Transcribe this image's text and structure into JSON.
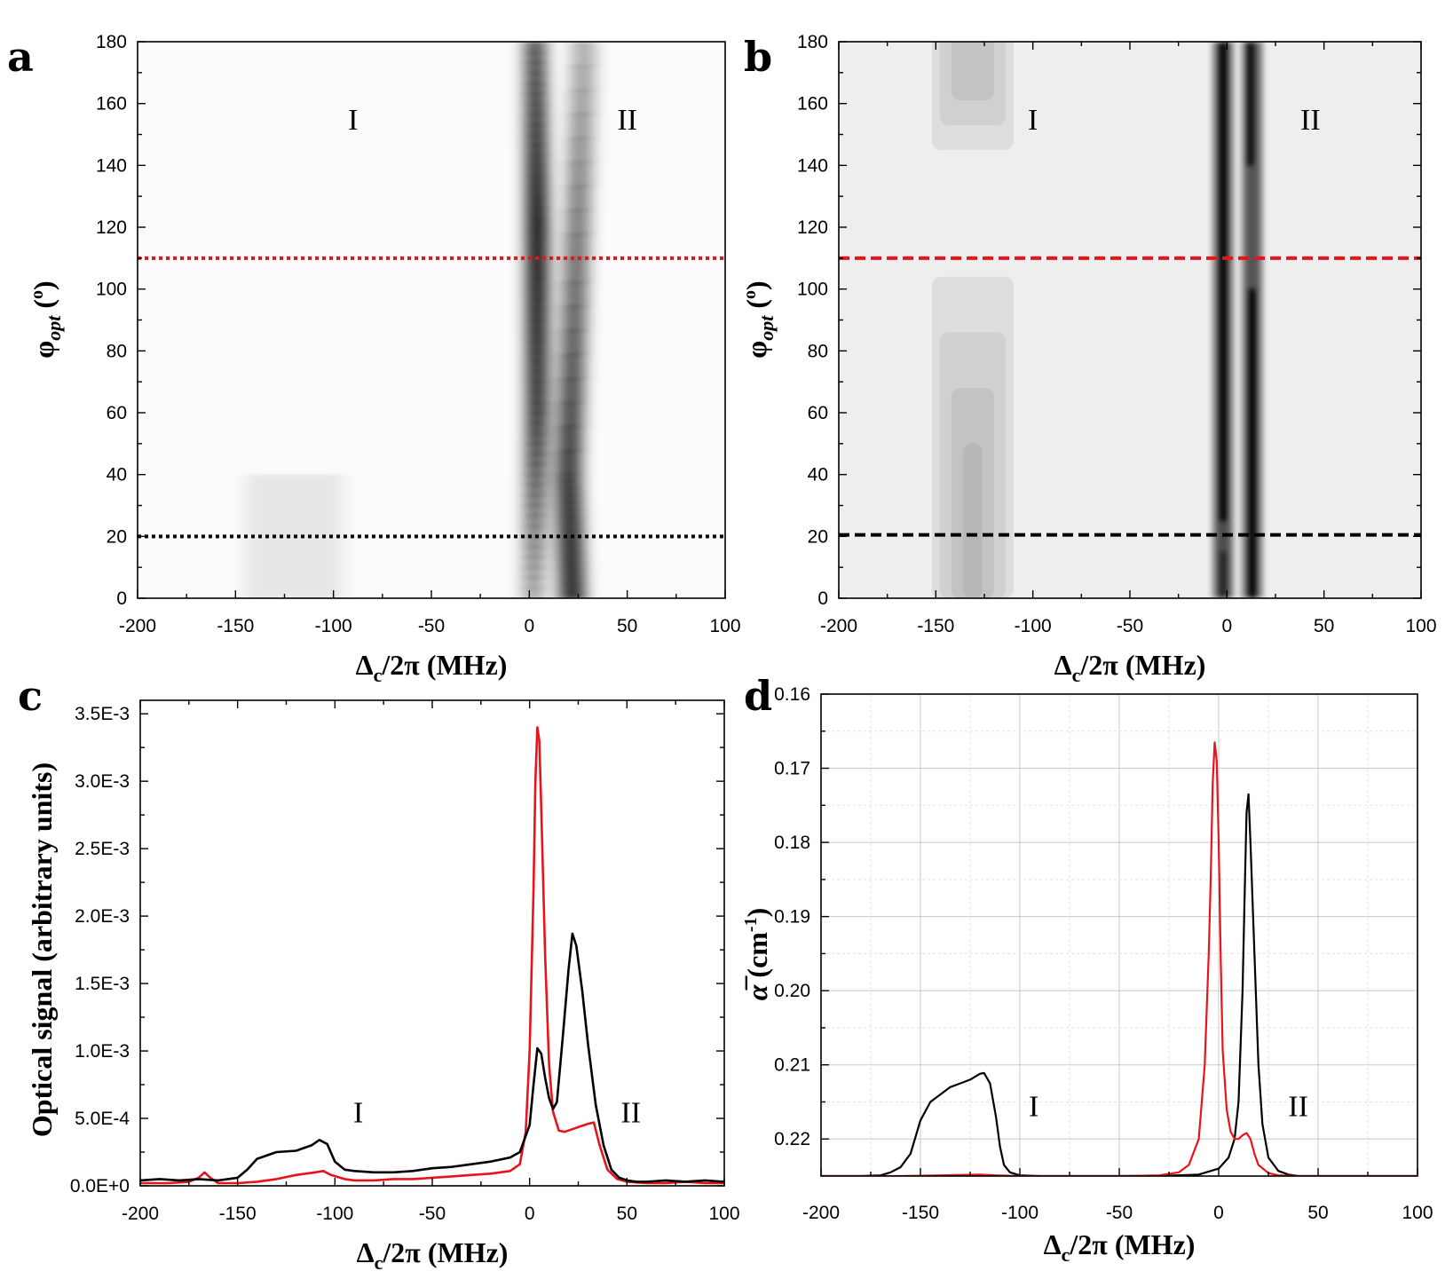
{
  "chart_data": [
    {
      "panel": "a",
      "type": "heatmap",
      "xlabel": "Δc/2π (MHz)",
      "ylabel": "φopt (o)",
      "xlim": [
        -200,
        100
      ],
      "ylim": [
        0,
        180
      ],
      "xticks": [
        -200,
        -150,
        -100,
        -50,
        0,
        50,
        100
      ],
      "yticks": [
        0,
        20,
        40,
        60,
        80,
        100,
        120,
        140,
        160,
        180
      ],
      "region_labels": [
        {
          "text": "I",
          "x": -90,
          "y": 155
        },
        {
          "text": "II",
          "x": 50,
          "y": 155
        }
      ],
      "reference_lines": [
        {
          "y": 110,
          "color": "#e8141b",
          "style": "dotted"
        },
        {
          "y": 20,
          "color": "#000000",
          "style": "dotted"
        }
      ],
      "colormap": "white-to-black (signal strength)",
      "features": [
        {
          "x": [
            2,
            4,
            4,
            3
          ],
          "y": [
            0,
            60,
            120,
            180
          ],
          "weight": [
            0.35,
            0.85,
            1.0,
            0.7
          ],
          "width_mhz": 5
        },
        {
          "x": [
            22,
            20,
            28
          ],
          "y": [
            0,
            40,
            180
          ],
          "weight": [
            0.85,
            0.8,
            0.3
          ],
          "width_mhz": 6
        },
        {
          "x": [
            -130,
            -110
          ],
          "y": [
            0,
            40
          ],
          "weight": [
            0.08,
            0.1
          ],
          "width_mhz": 15
        }
      ]
    },
    {
      "panel": "b",
      "type": "heatmap",
      "xlabel": "Δc/2π (MHz)",
      "ylabel": "φopt (o)",
      "xlim": [
        -200,
        100
      ],
      "ylim": [
        0,
        180
      ],
      "xticks": [
        -200,
        -150,
        -100,
        -50,
        0,
        50,
        100
      ],
      "yticks": [
        0,
        20,
        40,
        60,
        80,
        100,
        120,
        140,
        160,
        180
      ],
      "region_labels": [
        {
          "text": "I",
          "x": -100,
          "y": 155
        },
        {
          "text": "II",
          "x": 43,
          "y": 155
        }
      ],
      "reference_lines": [
        {
          "y": 110,
          "color": "#e8141b",
          "style": "dashed"
        },
        {
          "y": 20.5,
          "color": "#000000",
          "style": "dashed"
        }
      ],
      "colormap": "light-gray-to-black (contour)",
      "background": "#eeeeee",
      "features": [
        {
          "x": -2,
          "y_range": [
            0,
            180
          ],
          "weight": 1.0
        },
        {
          "x": 13,
          "y_range": [
            0,
            180
          ],
          "weight": 0.95
        },
        {
          "x": -128,
          "y_range": [
            0,
            180
          ],
          "weight": 0.25
        }
      ]
    },
    {
      "panel": "c",
      "type": "line",
      "xlabel": "Δc/2π (MHz)",
      "ylabel": "Optical signal (arbitrary units)",
      "xlim": [
        -200,
        100
      ],
      "ylim": [
        0,
        0.0036
      ],
      "xticks": [
        -200,
        -150,
        -100,
        -50,
        0,
        50,
        100
      ],
      "yticks": [
        0,
        0.0005,
        0.001,
        0.0015,
        0.002,
        0.0025,
        0.003,
        0.0035
      ],
      "ytick_labels": [
        "0.0E+0",
        "5.0E-4",
        "1.0E-3",
        "1.5E-3",
        "2.0E-3",
        "2.5E-3",
        "3.0E-3",
        "3.5E-3"
      ],
      "region_labels": [
        {
          "text": "I",
          "x": -88,
          "y": 0.00055
        },
        {
          "text": "II",
          "x": 52,
          "y": 0.00055
        }
      ],
      "series": [
        {
          "color": "#000000",
          "x": [
            -200,
            -190,
            -180,
            -170,
            -160,
            -150,
            -145,
            -140,
            -130,
            -120,
            -112,
            -108,
            -104,
            -100,
            -95,
            -90,
            -80,
            -70,
            -60,
            -50,
            -40,
            -30,
            -20,
            -10,
            -5,
            0,
            2,
            4,
            6,
            8,
            10,
            12,
            14,
            17,
            20,
            22,
            24,
            27,
            30,
            34,
            38,
            42,
            46,
            50,
            55,
            60,
            70,
            80,
            90,
            100
          ],
          "y": [
            4e-05,
            5e-05,
            4e-05,
            5e-05,
            4e-05,
            6e-05,
            0.00012,
            0.0002,
            0.00025,
            0.00026,
            0.0003,
            0.00034,
            0.00031,
            0.00018,
            0.00012,
            0.00011,
            0.0001,
            0.0001,
            0.00011,
            0.00013,
            0.00014,
            0.00016,
            0.00018,
            0.00021,
            0.00025,
            0.00045,
            0.00075,
            0.00102,
            0.00098,
            0.0008,
            0.00065,
            0.00057,
            0.00062,
            0.0011,
            0.0016,
            0.00187,
            0.00178,
            0.00145,
            0.00105,
            0.0006,
            0.0003,
            0.00012,
            6e-05,
            4e-05,
            3e-05,
            3e-05,
            4e-05,
            3e-05,
            4e-05,
            3e-05
          ]
        },
        {
          "color": "#e8141b",
          "x": [
            -200,
            -185,
            -175,
            -170,
            -167,
            -164,
            -160,
            -150,
            -140,
            -130,
            -120,
            -110,
            -106,
            -102,
            -95,
            -90,
            -80,
            -70,
            -60,
            -50,
            -40,
            -30,
            -20,
            -10,
            -5,
            -2,
            0,
            2,
            3,
            4,
            5,
            6,
            8,
            10,
            12,
            15,
            18,
            22,
            26,
            30,
            33,
            36,
            40,
            45,
            50,
            60,
            70,
            80,
            90,
            100
          ],
          "y": [
            2e-05,
            2e-05,
            3e-05,
            6e-05,
            0.0001,
            6e-05,
            2e-05,
            2e-05,
            3e-05,
            5e-05,
            8e-05,
            0.0001,
            0.00011,
            8e-05,
            5e-05,
            4e-05,
            4e-05,
            5e-05,
            5e-05,
            6e-05,
            7e-05,
            8e-05,
            9e-05,
            0.00011,
            0.00016,
            0.0004,
            0.001,
            0.0022,
            0.003,
            0.0034,
            0.0033,
            0.0028,
            0.0017,
            0.0009,
            0.00055,
            0.00041,
            0.0004,
            0.00042,
            0.00044,
            0.00046,
            0.00047,
            0.0003,
            0.00012,
            5e-05,
            3e-05,
            2e-05,
            2e-05,
            3e-05,
            2e-05,
            2e-05
          ]
        }
      ]
    },
    {
      "panel": "d",
      "type": "line",
      "xlabel": "Δc/2π (MHz)",
      "ylabel": "α̅ (cm-1)",
      "xlim": [
        -200,
        100
      ],
      "ylim": [
        0.225,
        0.16
      ],
      "y_inverted": true,
      "grid": true,
      "xticks": [
        -200,
        -150,
        -100,
        -50,
        0,
        50,
        100
      ],
      "yticks": [
        0.16,
        0.17,
        0.18,
        0.19,
        0.2,
        0.21,
        0.22
      ],
      "ytick_labels": [
        "0.16",
        "0.17",
        "0.18",
        "0.19",
        "0.20",
        "0.21",
        "0.22"
      ],
      "region_labels": [
        {
          "text": "I",
          "x": -93,
          "y": 0.2155
        },
        {
          "text": "II",
          "x": 40,
          "y": 0.2155
        }
      ],
      "series": [
        {
          "color": "#000000",
          "x": [
            -200,
            -180,
            -170,
            -165,
            -160,
            -155,
            -150,
            -145,
            -140,
            -135,
            -130,
            -125,
            -120,
            -118,
            -115,
            -112,
            -110,
            -108,
            -105,
            -100,
            -90,
            -60,
            -30,
            -10,
            0,
            5,
            8,
            10,
            12,
            13,
            14,
            15,
            16,
            18,
            20,
            22,
            25,
            30,
            35,
            40,
            50,
            100
          ],
          "y": [
            0.225,
            0.225,
            0.2249,
            0.2245,
            0.2238,
            0.222,
            0.2175,
            0.215,
            0.214,
            0.213,
            0.2125,
            0.212,
            0.2112,
            0.2111,
            0.2125,
            0.217,
            0.221,
            0.2235,
            0.2245,
            0.2249,
            0.225,
            0.225,
            0.225,
            0.2248,
            0.224,
            0.2225,
            0.22,
            0.215,
            0.2,
            0.188,
            0.176,
            0.1735,
            0.18,
            0.195,
            0.21,
            0.218,
            0.2225,
            0.2243,
            0.2248,
            0.225,
            0.225,
            0.225
          ]
        },
        {
          "color": "#e8141b",
          "x": [
            -200,
            -160,
            -140,
            -120,
            -112,
            -100,
            -50,
            -30,
            -20,
            -15,
            -10,
            -7,
            -5,
            -4,
            -3,
            -2,
            -1,
            0,
            1,
            2,
            4,
            6,
            8,
            10,
            12,
            14,
            16,
            18,
            20,
            25,
            30,
            40,
            50,
            100
          ],
          "y": [
            0.225,
            0.225,
            0.2249,
            0.2248,
            0.2249,
            0.225,
            0.225,
            0.2249,
            0.2245,
            0.2235,
            0.22,
            0.21,
            0.195,
            0.185,
            0.172,
            0.1665,
            0.169,
            0.18,
            0.195,
            0.208,
            0.216,
            0.219,
            0.22,
            0.22,
            0.2195,
            0.2192,
            0.22,
            0.222,
            0.2235,
            0.2246,
            0.2249,
            0.225,
            0.225,
            0.225
          ]
        }
      ]
    }
  ]
}
